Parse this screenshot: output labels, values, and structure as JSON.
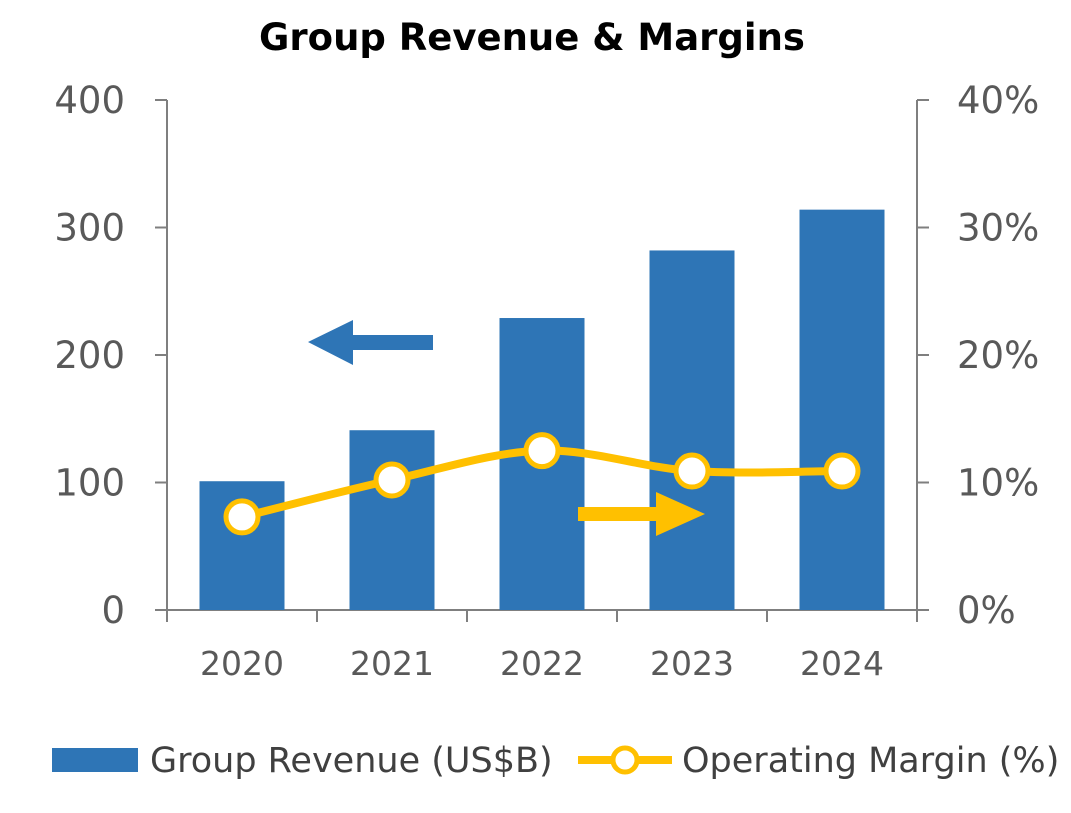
{
  "chart_data": {
    "type": "bar+line",
    "title": "Group Revenue & Margins",
    "categories": [
      "2020",
      "2021",
      "2022",
      "2023",
      "2024"
    ],
    "series": [
      {
        "name": "Group Revenue (US$B)",
        "type": "bar",
        "axis": "left",
        "color": "#2E75B6",
        "values": [
          101,
          141,
          229,
          282,
          314
        ]
      },
      {
        "name": "Operating Margin (%)",
        "type": "line",
        "axis": "right",
        "color": "#FFC000",
        "marker_fill": "#FFFFFF",
        "values": [
          7.3,
          10.2,
          12.5,
          10.9,
          10.9
        ]
      }
    ],
    "y_left": {
      "min": 0,
      "max": 400,
      "ticks": [
        0,
        100,
        200,
        300,
        400
      ],
      "tick_labels": [
        "0",
        "100",
        "200",
        "300",
        "400"
      ]
    },
    "y_right": {
      "min": 0,
      "max": 40,
      "ticks": [
        0,
        10,
        20,
        30,
        40
      ],
      "tick_labels": [
        "0%",
        "10%",
        "20%",
        "30%",
        "40%"
      ]
    },
    "annotations": [
      {
        "type": "arrow",
        "direction": "left",
        "meaning": "bars read on left axis",
        "color": "#2E75B6"
      },
      {
        "type": "arrow",
        "direction": "right",
        "meaning": "line reads on right axis",
        "color": "#FFC000"
      }
    ],
    "grid": false,
    "legend_position": "bottom",
    "xlabel": "",
    "ylabel": ""
  }
}
